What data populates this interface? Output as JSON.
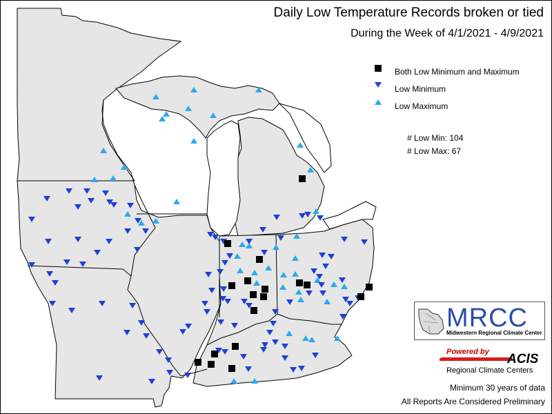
{
  "title": "Daily Low Temperature Records broken or tied",
  "subtitle": "During the Week of 4/1/2021 - 4/9/2021",
  "legend": [
    {
      "symbol": "square",
      "label": "Both Low Minimum and Maximum",
      "color": "#000000"
    },
    {
      "symbol": "triangle-down",
      "label": "Low Minimum",
      "color": "#1f3fd6"
    },
    {
      "symbol": "triangle-up",
      "label": "Low Maximum",
      "color": "#29a9f0"
    }
  ],
  "counts": {
    "low_min": "# Low Min: 104",
    "low_max": "# Low Max: 67"
  },
  "logos": {
    "mrcc_name": "MRCC",
    "mrcc_full": "Midwestern Regional Climate Center",
    "powered_by": "Powered by",
    "acis": "ACIS",
    "acis_full": "Regional Climate Centers"
  },
  "notes": {
    "minimum_years": "Minimum 30 years of data",
    "preliminary": "All Reports Are Considered Preliminary"
  },
  "colors": {
    "land": "#e6e6e6",
    "water": "#ffffff",
    "boundary": "#000000",
    "low_min": "#1f3fd6",
    "low_max": "#29a9f0",
    "both": "#000000"
  },
  "map": {
    "region": "Midwest United States",
    "states": [
      "Minnesota",
      "Wisconsin",
      "Michigan",
      "Iowa",
      "Illinois",
      "Indiana",
      "Ohio",
      "Missouri",
      "Kentucky"
    ]
  }
}
